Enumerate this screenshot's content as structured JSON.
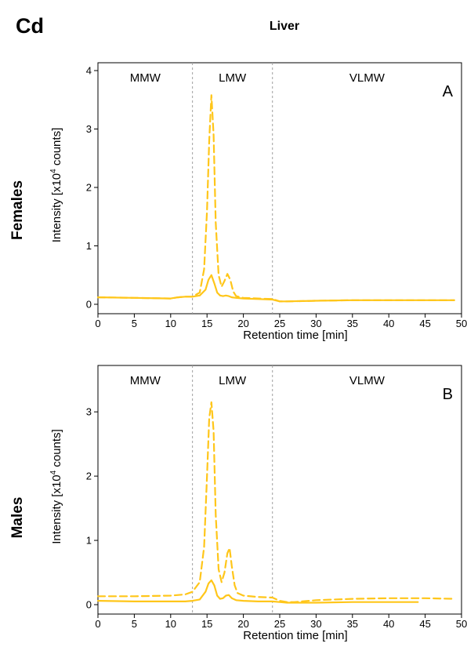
{
  "header": {
    "element": "Cd",
    "tissue": "Liver"
  },
  "colors": {
    "series": "#FFC61A",
    "divider": "#A0A0A0",
    "axis": "#000000"
  },
  "chart_data": [
    {
      "type": "line",
      "panel_label": "A",
      "group": "Females",
      "xlabel": "Retention time [min]",
      "ylabel": {
        "prefix": "Intensity [x10",
        "superscript": "4",
        "suffix": " counts]"
      },
      "xlim": [
        0,
        50
      ],
      "ylim": [
        0,
        4
      ],
      "xticks": [
        0,
        5,
        10,
        15,
        20,
        25,
        30,
        35,
        40,
        45,
        50
      ],
      "yticks": [
        0,
        1,
        2,
        3,
        4
      ],
      "regions": [
        {
          "label": "MMW",
          "from": 0,
          "to": 13
        },
        {
          "label": "LMW",
          "from": 13,
          "to": 24
        },
        {
          "label": "VLMW",
          "from": 24,
          "to": 50
        }
      ],
      "dividers": [
        13,
        24
      ],
      "series": [
        {
          "style": "dashed",
          "x": [
            0,
            5,
            10,
            11,
            12,
            13,
            14,
            14.6,
            15,
            15.3,
            15.6,
            15.9,
            16.2,
            16.6,
            17,
            17.4,
            17.8,
            18.2,
            18.6,
            19,
            19.6,
            20,
            22,
            24,
            25,
            26,
            30,
            35,
            40,
            45,
            49
          ],
          "y": [
            0.12,
            0.11,
            0.1,
            0.12,
            0.13,
            0.13,
            0.2,
            0.6,
            1.6,
            2.8,
            3.58,
            2.9,
            1.4,
            0.5,
            0.3,
            0.4,
            0.52,
            0.42,
            0.22,
            0.14,
            0.12,
            0.11,
            0.1,
            0.09,
            0.05,
            0.05,
            0.06,
            0.07,
            0.07,
            0.07,
            0.07
          ]
        },
        {
          "style": "solid",
          "x": [
            0,
            5,
            10,
            11,
            12,
            13,
            14,
            14.8,
            15.2,
            15.6,
            16,
            16.4,
            16.8,
            17.2,
            17.6,
            18,
            18.4,
            19,
            20,
            22,
            24,
            25,
            26,
            30,
            35,
            40,
            45,
            49
          ],
          "y": [
            0.12,
            0.11,
            0.1,
            0.12,
            0.13,
            0.13,
            0.15,
            0.25,
            0.42,
            0.5,
            0.36,
            0.2,
            0.15,
            0.14,
            0.15,
            0.14,
            0.12,
            0.11,
            0.1,
            0.09,
            0.08,
            0.05,
            0.05,
            0.06,
            0.07,
            0.07,
            0.07,
            0.07
          ]
        }
      ]
    },
    {
      "type": "line",
      "panel_label": "B",
      "group": "Males",
      "xlabel": "Retention time [min]",
      "ylabel": {
        "prefix": "Intensity [x10",
        "superscript": "4",
        "suffix": " counts]"
      },
      "xlim": [
        0,
        50
      ],
      "ylim": [
        0,
        3.6
      ],
      "xticks": [
        0,
        5,
        10,
        15,
        20,
        25,
        30,
        35,
        40,
        45,
        50
      ],
      "yticks": [
        0,
        1,
        2,
        3
      ],
      "regions": [
        {
          "label": "MMW",
          "from": 0,
          "to": 13
        },
        {
          "label": "LMW",
          "from": 13,
          "to": 24
        },
        {
          "label": "VLMW",
          "from": 24,
          "to": 50
        }
      ],
      "dividers": [
        13,
        24
      ],
      "series": [
        {
          "style": "dashed",
          "x": [
            0,
            5,
            10,
            12,
            13,
            14,
            14.6,
            15,
            15.3,
            15.6,
            15.9,
            16.2,
            16.6,
            17,
            17.4,
            17.8,
            18.1,
            18.4,
            18.8,
            19.2,
            20,
            22,
            24,
            25,
            26,
            27,
            30,
            35,
            40,
            45,
            49
          ],
          "y": [
            0.13,
            0.13,
            0.14,
            0.16,
            0.2,
            0.35,
            0.9,
            2.0,
            2.9,
            3.15,
            2.7,
            1.4,
            0.55,
            0.35,
            0.5,
            0.8,
            0.88,
            0.6,
            0.3,
            0.18,
            0.14,
            0.12,
            0.11,
            0.06,
            0.04,
            0.04,
            0.07,
            0.09,
            0.1,
            0.1,
            0.09
          ]
        },
        {
          "style": "solid",
          "x": [
            0,
            5,
            10,
            12,
            13,
            14,
            14.8,
            15.2,
            15.6,
            16,
            16.4,
            16.8,
            17.2,
            17.6,
            18,
            18.4,
            19,
            20,
            22,
            24,
            25,
            26,
            27,
            30,
            35,
            40,
            44
          ],
          "y": [
            0.06,
            0.05,
            0.05,
            0.05,
            0.06,
            0.08,
            0.2,
            0.33,
            0.38,
            0.3,
            0.14,
            0.09,
            0.1,
            0.14,
            0.15,
            0.1,
            0.07,
            0.06,
            0.05,
            0.05,
            0.04,
            0.03,
            0.03,
            0.03,
            0.04,
            0.04,
            0.04
          ]
        }
      ]
    }
  ]
}
